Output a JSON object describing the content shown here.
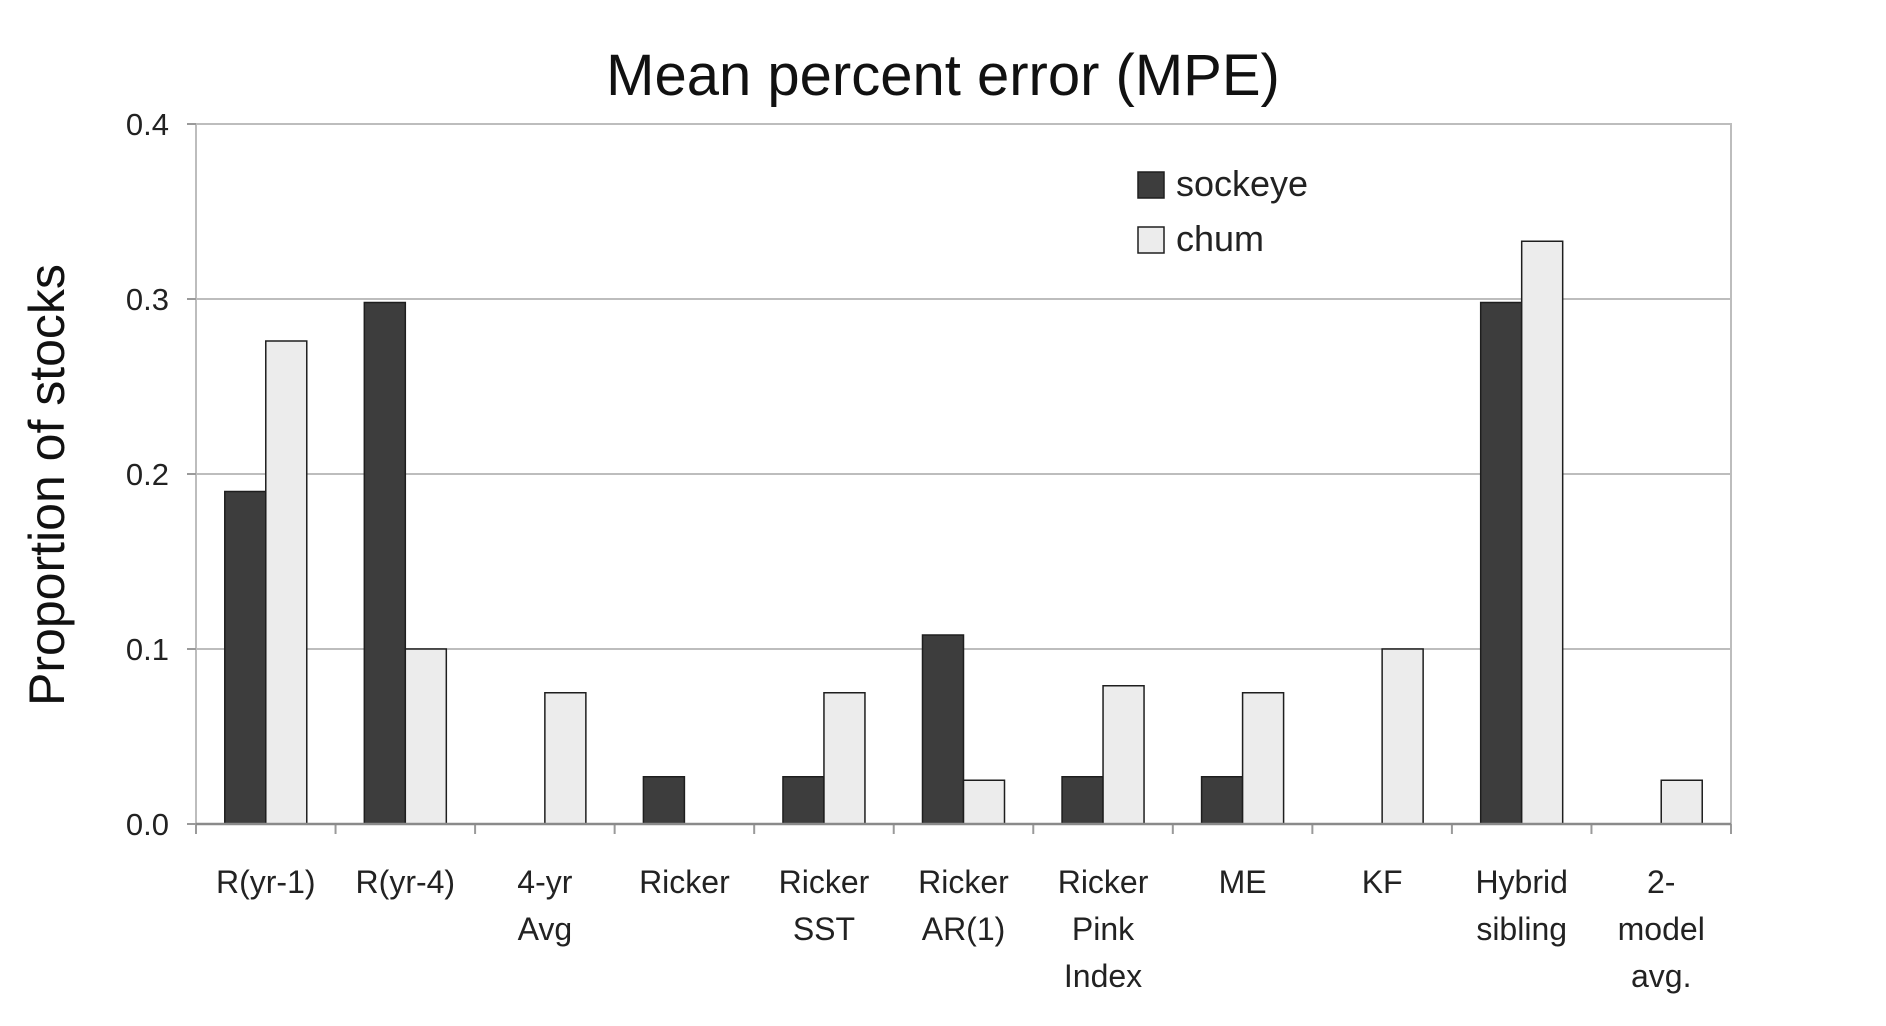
{
  "chart_data": {
    "type": "bar",
    "title": "Mean percent error (MPE)",
    "xlabel": "",
    "ylabel": "Proportion of stocks",
    "ylim": [
      0,
      0.4
    ],
    "yticks": [
      "0.0",
      "0.1",
      "0.2",
      "0.3",
      "0.4"
    ],
    "grid": true,
    "legend_position": "top-right",
    "categories": [
      [
        "R(yr-1)"
      ],
      [
        "R(yr-4)"
      ],
      [
        "4-yr",
        "Avg"
      ],
      [
        "Ricker"
      ],
      [
        "Ricker",
        "SST"
      ],
      [
        "Ricker",
        "AR(1)"
      ],
      [
        "Ricker",
        "Pink",
        "Index"
      ],
      [
        "ME"
      ],
      [
        "KF"
      ],
      [
        "Hybrid",
        "sibling"
      ],
      [
        "2-",
        "model",
        "avg."
      ]
    ],
    "series": [
      {
        "name": "sockeye",
        "color": "#3d3d3d",
        "values": [
          0.19,
          0.298,
          0,
          0.027,
          0.027,
          0.108,
          0.027,
          0.027,
          0,
          0.298,
          0
        ]
      },
      {
        "name": "chum",
        "color": "#ececec",
        "values": [
          0.276,
          0.1,
          0.075,
          0,
          0.075,
          0.025,
          0.079,
          0.075,
          0.1,
          0.333,
          0.025
        ]
      }
    ]
  }
}
